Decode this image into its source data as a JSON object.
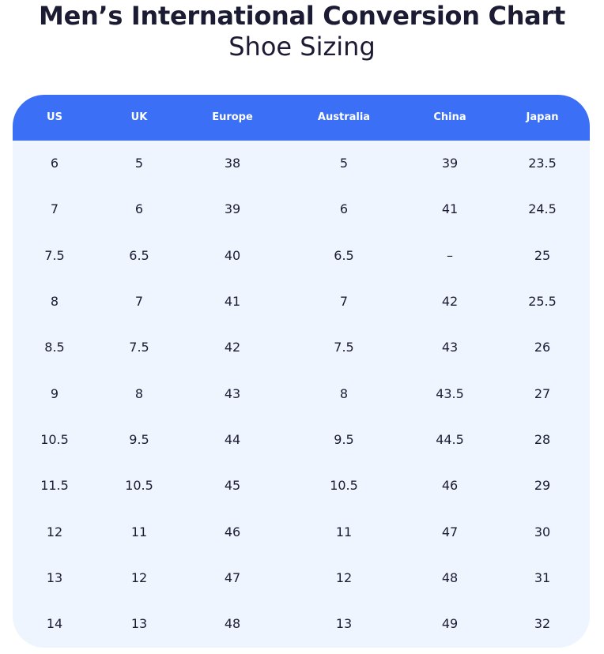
{
  "title": "Men’s International Conversion Chart",
  "subtitle": "Shoe Sizing",
  "colors": {
    "header_bg": "#3b6ff5",
    "table_bg": "#eef5ff",
    "header_text": "#ffffff",
    "body_text": "#1b1b33"
  },
  "table": {
    "columns": [
      "US",
      "UK",
      "Europe",
      "Australia",
      "China",
      "Japan"
    ],
    "rows": [
      [
        "6",
        "5",
        "38",
        "5",
        "39",
        "23.5"
      ],
      [
        "7",
        "6",
        "39",
        "6",
        "41",
        "24.5"
      ],
      [
        "7.5",
        "6.5",
        "40",
        "6.5",
        "–",
        "25"
      ],
      [
        "8",
        "7",
        "41",
        "7",
        "42",
        "25.5"
      ],
      [
        "8.5",
        "7.5",
        "42",
        "7.5",
        "43",
        "26"
      ],
      [
        "9",
        "8",
        "43",
        "8",
        "43.5",
        "27"
      ],
      [
        "10.5",
        "9.5",
        "44",
        "9.5",
        "44.5",
        "28"
      ],
      [
        "11.5",
        "10.5",
        "45",
        "10.5",
        "46",
        "29"
      ],
      [
        "12",
        "11",
        "46",
        "11",
        "47",
        "30"
      ],
      [
        "13",
        "12",
        "47",
        "12",
        "48",
        "31"
      ],
      [
        "14",
        "13",
        "48",
        "13",
        "49",
        "32"
      ]
    ]
  }
}
